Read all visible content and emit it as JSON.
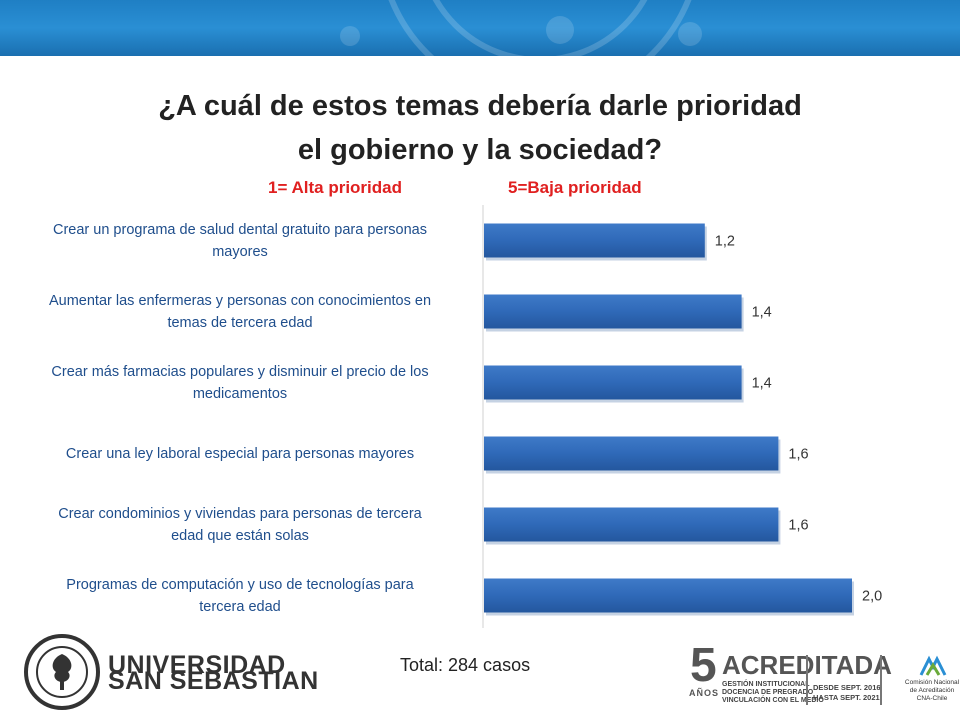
{
  "title_line1": "¿A cuál de estos temas debería darle prioridad",
  "title_line2": "el gobierno y la sociedad?",
  "subtitle_high": "1= Alta prioridad",
  "subtitle_low": "5=Baja prioridad",
  "footer_total": "Total: 284 casos",
  "branding": {
    "university_line1": "UNIVERSIDAD",
    "university_line2": "SAN SEBASTIAN",
    "accreditation_number": "5",
    "accreditation_years": "AÑOS",
    "accreditation_word": "ACREDITADA",
    "accreditation_areas": [
      "GESTIÓN INSTITUCIONAL",
      "DOCENCIA DE PREGRADO",
      "VINCULACIÓN CON EL MEDIO"
    ],
    "accreditation_from": "DESDE SEPT. 2016",
    "accreditation_to": "HASTA SEPT. 2021",
    "cna_lines": [
      "Comisión Nacional",
      "de Acreditación",
      "CNA-Chile"
    ]
  },
  "colors": {
    "bar": "#2f69b8",
    "label": "#1f4e8c",
    "subtitle": "#e02020",
    "banner": "#1f7fc4"
  },
  "chart_data": {
    "type": "bar",
    "orientation": "horizontal",
    "categories": [
      [
        "Crear un programa de salud dental gratuito para personas",
        "mayores"
      ],
      [
        "Aumentar las enfermeras y personas con conocimientos en",
        "temas de tercera edad"
      ],
      [
        "Crear más farmacias populares y disminuir el precio de los",
        "medicamentos"
      ],
      [
        "Crear una ley laboral especial para personas mayores"
      ],
      [
        "Crear condominios y viviendas para personas de tercera",
        "edad que están solas"
      ],
      [
        "Programas de computación y uso de tecnologías para",
        "tercera edad"
      ]
    ],
    "values": [
      1.2,
      1.4,
      1.4,
      1.6,
      1.6,
      2.0
    ],
    "data_labels": [
      "1,2",
      "1,4",
      "1,4",
      "1,6",
      "1,6",
      "2,0"
    ],
    "xlim": [
      0,
      2.5
    ],
    "grid": false,
    "legend": "none"
  }
}
